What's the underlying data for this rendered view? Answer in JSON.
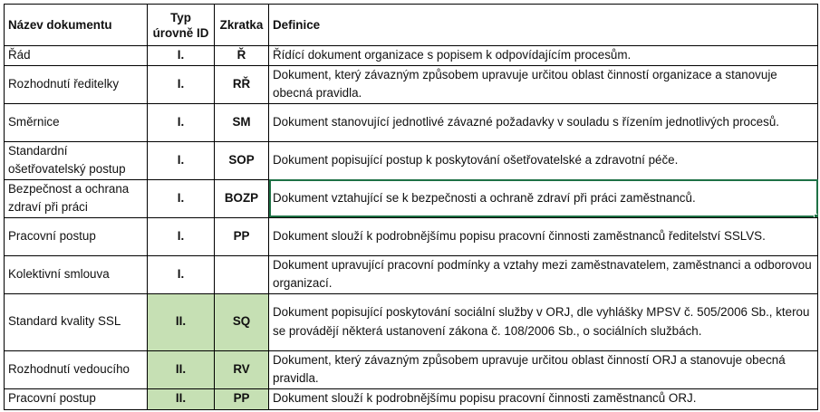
{
  "table": {
    "headers": [
      "Název dokumentu",
      "Typ úrovně ID",
      "Zkratka",
      "Definice"
    ],
    "rows": [
      {
        "name": "Řád",
        "level": "I.",
        "abbr": "Ř",
        "def": "Řídící dokument organizace s popisem k odpovídajícím procesům."
      },
      {
        "name": "Rozhodnutí ředitelky",
        "level": "I.",
        "abbr": "RŘ",
        "def": "Dokument, který závazným způsobem upravuje určitou oblast činností organizace a stanovuje obecná pravidla."
      },
      {
        "name": "Směrnice",
        "level": "I.",
        "abbr": "SM",
        "def": "Dokument stanovující jednotlivé závazné požadavky v souladu s řízením jednotlivých procesů."
      },
      {
        "name": "Standardní ošetřovatelský postup",
        "level": "I.",
        "abbr": "SOP",
        "def": "Dokument popisující postup k poskytování ošetřovatelské a zdravotní péče."
      },
      {
        "name": "Bezpečnost a ochrana zdraví při práci",
        "level": "I.",
        "abbr": "BOZP",
        "def": "Dokument vztahující se k bezpečnosti a ochraně zdraví při práci zaměstnanců."
      },
      {
        "name": "Pracovní postup",
        "level": "I.",
        "abbr": "PP",
        "def": "Dokument slouží k podrobnějšímu popisu pracovní činnosti zaměstnanců ředitelství SSLVS."
      },
      {
        "name": "Kolektivní smlouva",
        "level": "I.",
        "abbr": "",
        "def": "Dokument upravující pracovní podmínky a vztahy mezi zaměstnavatelem, zaměstnanci a odborovou organizací."
      },
      {
        "name": "Standard kvality SSL",
        "level": "II.",
        "abbr": "SQ",
        "def": "Dokument popisující poskytování sociální služby v ORJ, dle vyhlášky MPSV č. 505/2006 Sb., kterou se provádějí některá ustanovení zákona č. 108/2006 Sb., o sociálních službách."
      },
      {
        "name": "Rozhodnutí vedoucího",
        "level": "II.",
        "abbr": "RV",
        "def": "Dokument, který závazným způsobem upravuje určitou oblast činností ORJ a stanovuje obecná pravidla."
      },
      {
        "name": "Pracovní postup",
        "level": "II.",
        "abbr": "PP",
        "def": "Dokument slouží k podrobnějšímu popisu pracovní činnosti zaměstnanců ORJ."
      }
    ]
  },
  "colors": {
    "level_ii_fill": "#c6e0b4",
    "selection": "#1e7145"
  }
}
